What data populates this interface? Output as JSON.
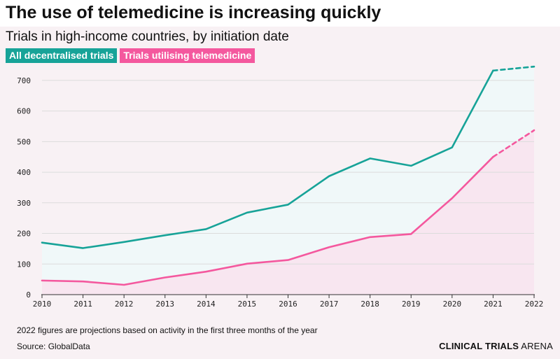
{
  "title": "The use of telemedicine is increasing quickly",
  "subtitle": "Trials in high-income countries, by initiation date",
  "note": "2022 figures are projections based on activity in the first three months of the year",
  "source": "Source: GlobalData",
  "brand": {
    "bold": "CLINICAL TRIALS",
    "light": " ARENA"
  },
  "colors": {
    "teal": "#17a398",
    "pink": "#f4589e",
    "teal_fill": "#f0f8f9",
    "pink_fill": "#f8e6f0",
    "panel_bg": "#f8f1f4"
  },
  "chart_data": {
    "type": "line",
    "x": [
      2010,
      2011,
      2012,
      2013,
      2014,
      2015,
      2016,
      2017,
      2018,
      2019,
      2020,
      2021,
      2022
    ],
    "ylim": [
      0,
      750
    ],
    "yticks": [
      0,
      100,
      200,
      300,
      400,
      500,
      600,
      700
    ],
    "grid": true,
    "legend_position": "top-left",
    "projection_from": 2021,
    "series": [
      {
        "name": "All decentralised trials",
        "color": "#17a398",
        "values": [
          170,
          152,
          172,
          194,
          214,
          268,
          294,
          387,
          445,
          421,
          481,
          732,
          745
        ]
      },
      {
        "name": "Trials utilising telemedicine",
        "color": "#f4589e",
        "values": [
          46,
          43,
          32,
          56,
          75,
          101,
          113,
          155,
          188,
          198,
          315,
          450,
          537
        ]
      }
    ]
  }
}
